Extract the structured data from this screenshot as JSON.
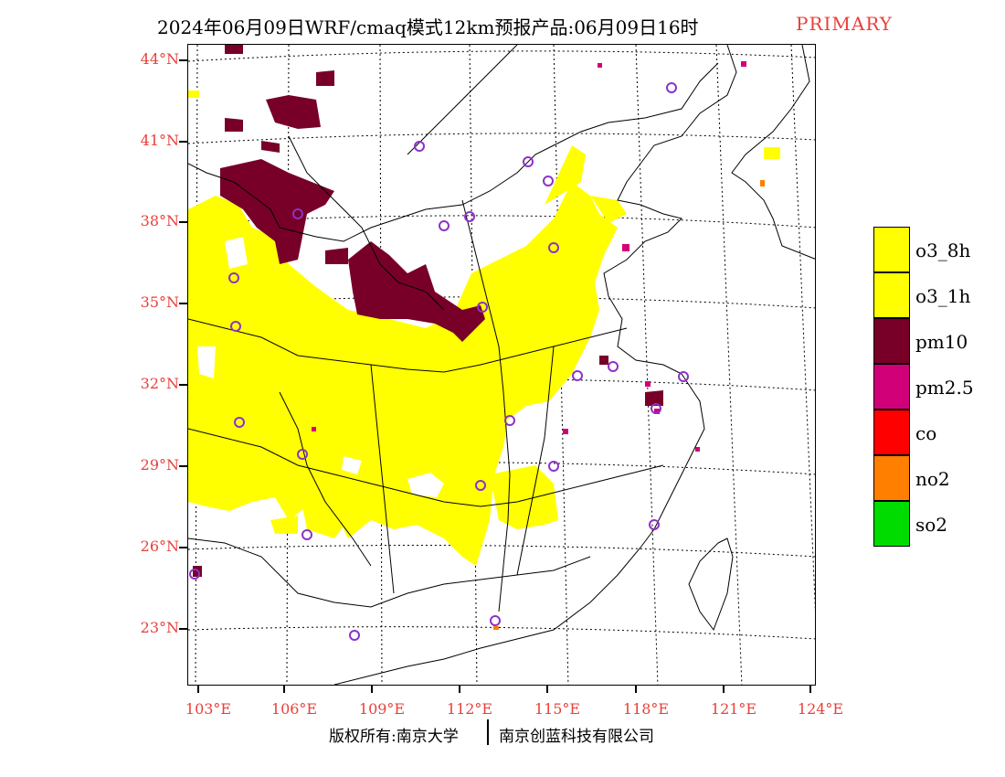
{
  "title": {
    "main": "2024年06月09日WRF/cmaq模式12km预报产品:06月09日16时",
    "tag": "PRIMARY"
  },
  "latitude_labels": [
    "44°N",
    "41°N",
    "38°N",
    "35°N",
    "32°N",
    "29°N",
    "26°N",
    "23°N"
  ],
  "longitude_labels": [
    "103°E",
    "106°E",
    "109°E",
    "112°E",
    "115°E",
    "118°E",
    "121°E",
    "124°E"
  ],
  "legend": [
    {
      "label": "o3_8h",
      "color": "#ffff00"
    },
    {
      "label": "o3_1h",
      "color": "#ffff00"
    },
    {
      "label": "pm10",
      "color": "#780028"
    },
    {
      "label": "pm2.5",
      "color": "#d20078"
    },
    {
      "label": "co",
      "color": "#ff0000"
    },
    {
      "label": "no2",
      "color": "#ff7f00"
    },
    {
      "label": "so2",
      "color": "#00dc00"
    }
  ],
  "colors": {
    "ozone": "#ffff00",
    "pm10": "#780028",
    "pm25": "#d20078",
    "no2": "#ff7f00",
    "station_circle": "#8c32c8",
    "labels": "#e8403a"
  },
  "copyright": {
    "left": "版权所有:南京大学",
    "right": "南京创蓝科技有限公司"
  }
}
